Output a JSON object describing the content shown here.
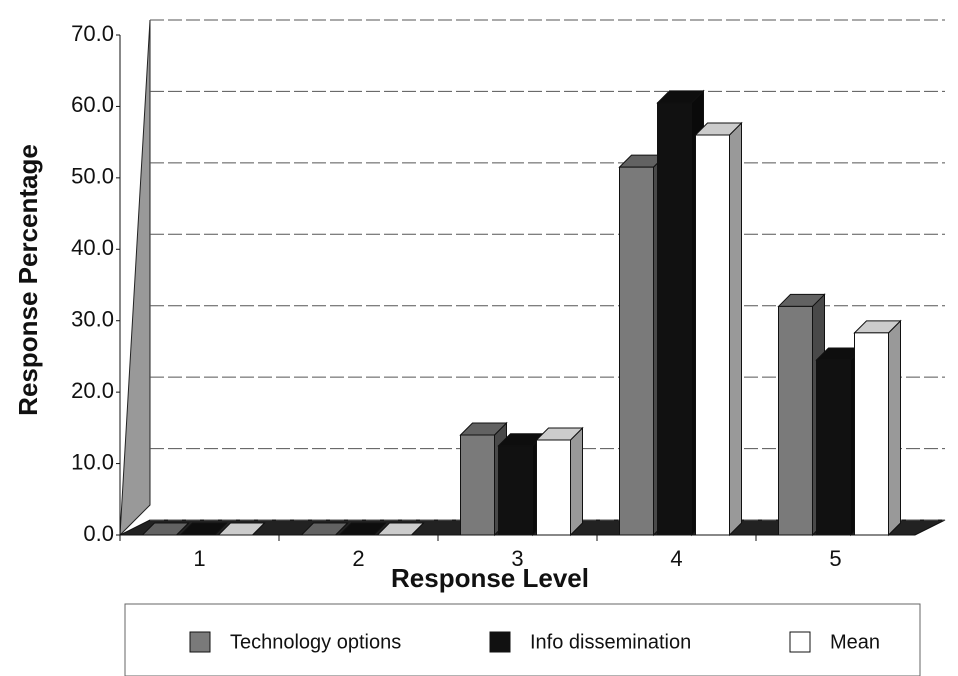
{
  "chart_data": {
    "type": "bar",
    "x_label": "Response Level",
    "y_label": "Response Percentage",
    "categories": [
      "1",
      "2",
      "3",
      "4",
      "5"
    ],
    "series": [
      {
        "name": "Technology options",
        "color": "#7a7a7a",
        "values": [
          0,
          0,
          14.0,
          51.5,
          32.0
        ]
      },
      {
        "name": "Info dissemination",
        "color": "#111111",
        "values": [
          0,
          0,
          12.5,
          60.5,
          24.5
        ]
      },
      {
        "name": "Mean",
        "color": "#ffffff",
        "values": [
          0,
          0,
          13.3,
          56.0,
          28.3
        ]
      }
    ],
    "ylim": [
      0,
      70
    ],
    "yticks": [
      {
        "value": 0,
        "label": "0.0"
      },
      {
        "value": 10,
        "label": "10.0"
      },
      {
        "value": 20,
        "label": "20.0"
      },
      {
        "value": 30,
        "label": "30.0"
      },
      {
        "value": 40,
        "label": "40.0"
      },
      {
        "value": 50,
        "label": "50.0"
      },
      {
        "value": 60,
        "label": "60.0"
      },
      {
        "value": 70,
        "label": "70.0"
      }
    ],
    "grid": true
  }
}
